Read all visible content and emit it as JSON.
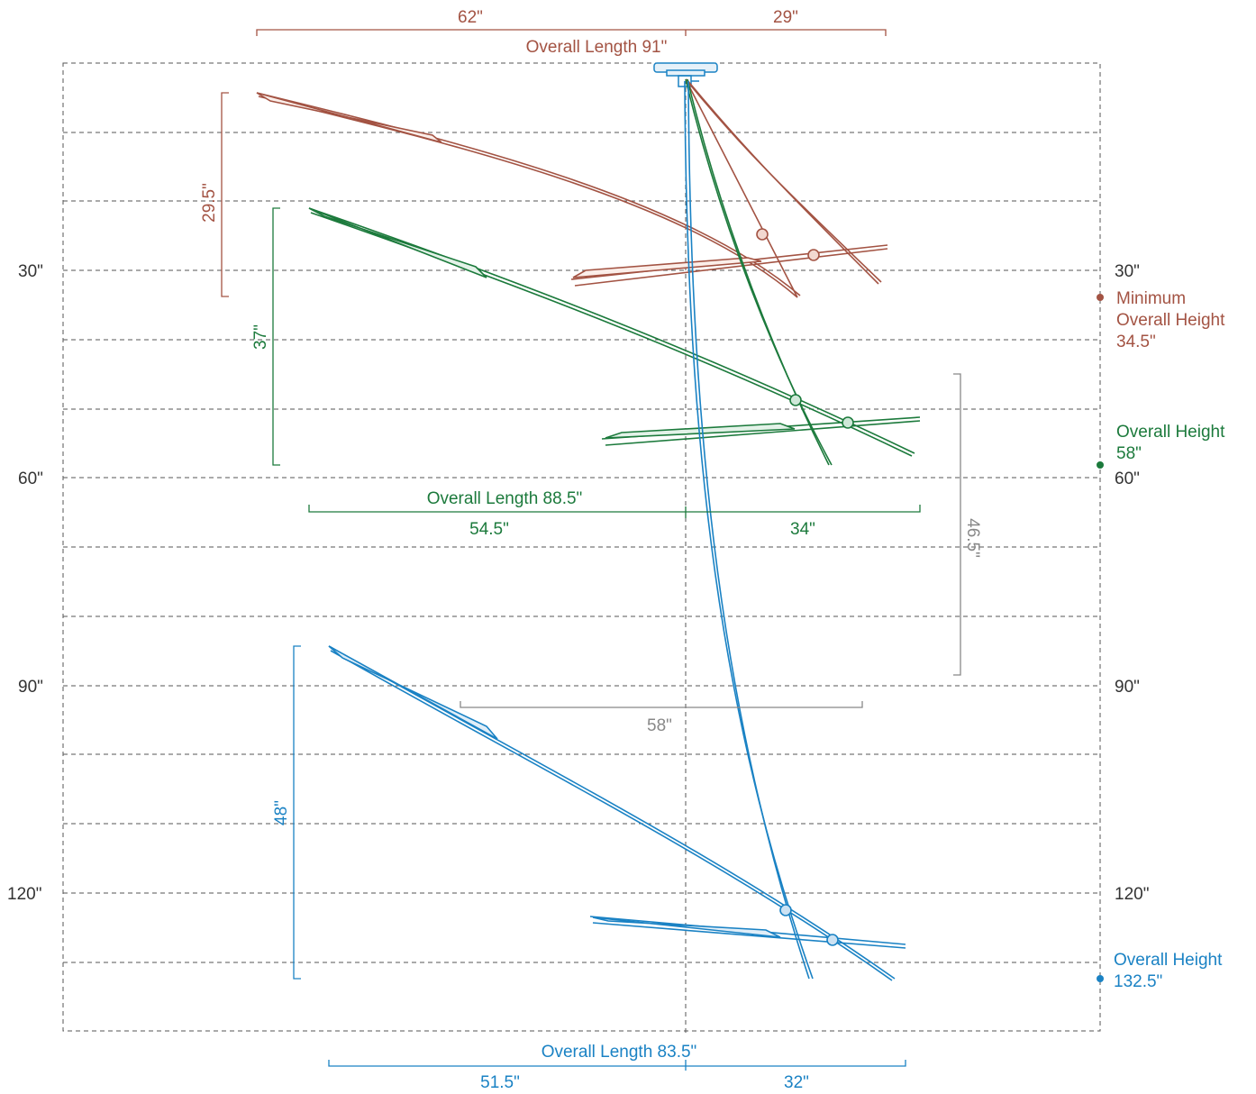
{
  "colors": {
    "red": "#a35343",
    "green": "#1c7a3c",
    "blue": "#1a82c4",
    "gray": "#888888",
    "grid": "#555555",
    "text": "#333333"
  },
  "axis": {
    "left": [
      "30\"",
      "60\"",
      "90\"",
      "120\""
    ],
    "right": [
      "30\"",
      "60\"",
      "90\"",
      "120\""
    ]
  },
  "red": {
    "left_span": "62\"",
    "right_span": "29\"",
    "overall_length": "Overall Length 91\"",
    "drop": "29.5\"",
    "height_line1": "Minimum",
    "height_line2": "Overall Height",
    "height_line3": "34.5\""
  },
  "green": {
    "overall_length": "Overall Length 88.5\"",
    "left_span": "54.5\"",
    "right_span": "34\"",
    "drop": "37\"",
    "height_line1": "Overall Height",
    "height_line2": "58\""
  },
  "gray": {
    "width": "58\"",
    "height": "46.5\""
  },
  "blue": {
    "overall_length": "Overall Length 83.5\"",
    "left_span": "51.5\"",
    "right_span": "32\"",
    "drop": "48\"",
    "height_line1": "Overall Height",
    "height_line2": "132.5\""
  }
}
